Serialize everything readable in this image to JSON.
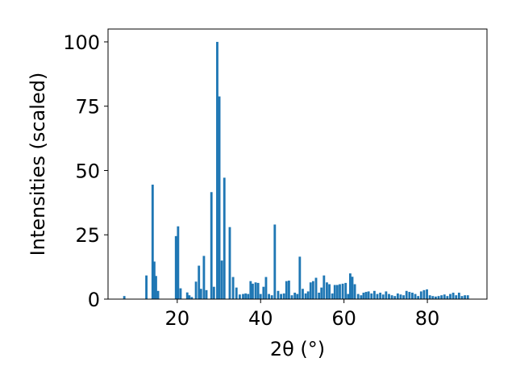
{
  "chart_data": {
    "type": "bar",
    "xlabel": "2θ (°)",
    "ylabel": "Intensities (scaled)",
    "xlim": [
      3.4,
      94.3
    ],
    "ylim": [
      0,
      105
    ],
    "x_ticks": [
      "20",
      "40",
      "60",
      "80"
    ],
    "y_ticks": [
      "0",
      "25",
      "50",
      "75",
      "100"
    ],
    "grid": false,
    "bar_color": "#1f77b4",
    "bar_width": 0.55,
    "x": [
      7.3,
      12.6,
      14.1,
      14.5,
      14.9,
      15.4,
      19.7,
      20.2,
      20.8,
      22.4,
      22.9,
      23.5,
      24.5,
      25.2,
      25.7,
      26.4,
      27.0,
      28.2,
      28.8,
      29.6,
      30.1,
      30.7,
      31.3,
      32.6,
      33.4,
      34.2,
      35.0,
      35.8,
      36.4,
      37.0,
      37.6,
      38.1,
      38.8,
      39.4,
      40.0,
      40.7,
      41.3,
      42.0,
      42.7,
      43.4,
      44.2,
      44.9,
      45.6,
      46.2,
      46.8,
      47.5,
      48.2,
      48.8,
      49.4,
      50.1,
      50.8,
      51.4,
      52.0,
      52.6,
      53.3,
      54.0,
      54.6,
      55.2,
      55.9,
      56.5,
      57.2,
      57.8,
      58.4,
      59.0,
      59.7,
      60.4,
      61.0,
      61.5,
      62.0,
      62.6,
      63.4,
      64.1,
      64.7,
      65.3,
      65.9,
      66.6,
      67.3,
      68.0,
      68.7,
      69.4,
      70.1,
      70.8,
      71.5,
      72.2,
      72.9,
      73.6,
      74.3,
      75.0,
      75.7,
      76.4,
      77.1,
      77.8,
      78.5,
      79.2,
      79.9,
      80.6,
      81.3,
      82.0,
      82.7,
      83.4,
      84.1,
      84.8,
      85.5,
      86.2,
      86.9,
      87.6,
      88.3,
      89.0,
      89.7
    ],
    "values": [
      1.2,
      9.2,
      44.5,
      14.6,
      9.0,
      3.2,
      24.5,
      28.3,
      4.2,
      2.6,
      1.5,
      0.8,
      6.8,
      13.0,
      4.0,
      16.8,
      3.5,
      41.6,
      4.8,
      100.0,
      78.8,
      15.0,
      47.2,
      28.0,
      8.6,
      4.5,
      1.8,
      2.0,
      2.2,
      2.0,
      7.0,
      6.0,
      6.5,
      6.3,
      2.0,
      4.8,
      8.6,
      2.0,
      1.5,
      29.0,
      3.2,
      2.0,
      2.2,
      7.0,
      7.2,
      1.5,
      2.5,
      2.0,
      16.5,
      4.0,
      2.2,
      3.0,
      6.5,
      7.0,
      8.3,
      2.5,
      4.5,
      9.2,
      6.5,
      5.8,
      2.2,
      5.5,
      5.5,
      5.8,
      6.0,
      6.3,
      2.0,
      10.0,
      8.7,
      5.8,
      2.0,
      1.5,
      2.5,
      2.8,
      3.0,
      2.2,
      3.2,
      2.0,
      2.5,
      1.8,
      3.0,
      2.0,
      1.5,
      1.2,
      2.2,
      1.8,
      1.5,
      3.2,
      2.8,
      2.5,
      2.0,
      1.2,
      3.0,
      3.5,
      3.8,
      1.5,
      1.2,
      1.0,
      1.2,
      1.5,
      1.8,
      1.2,
      2.0,
      2.5,
      1.5,
      2.5,
      1.2,
      1.5,
      1.5
    ]
  }
}
